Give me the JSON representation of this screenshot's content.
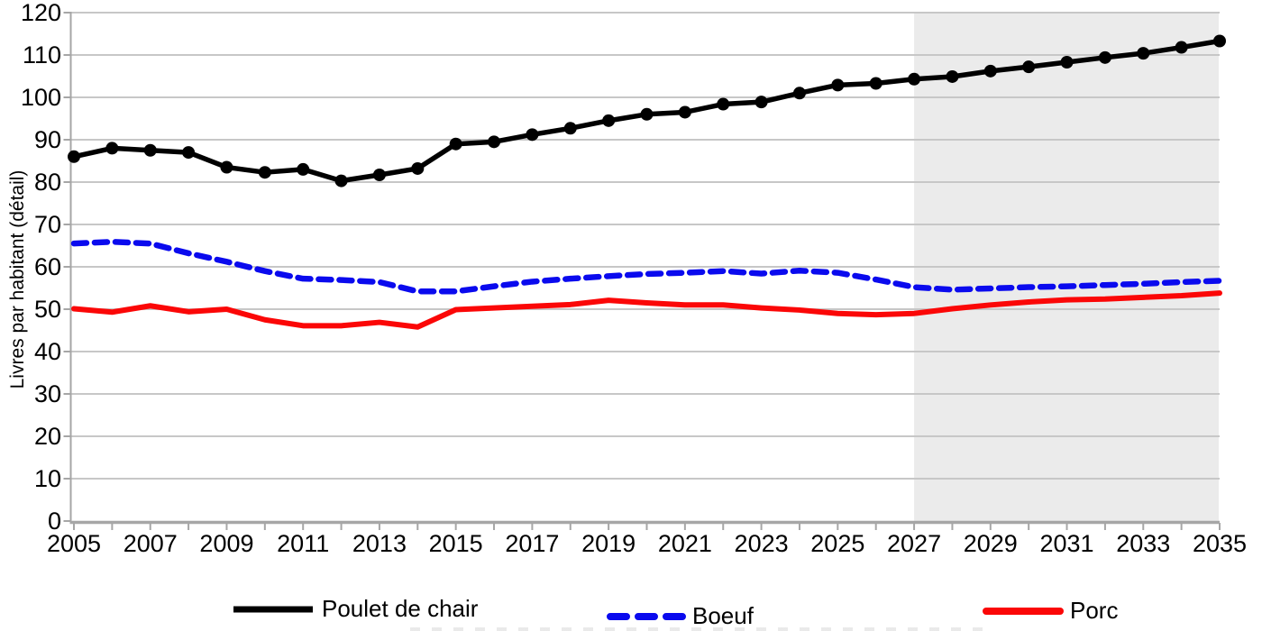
{
  "chart_data": {
    "type": "line",
    "title": "",
    "xlabel": "",
    "ylabel": "Livres par habitant (détail)",
    "ylim": [
      0,
      120
    ],
    "ytick_step": 10,
    "ytick_labels": [
      "0",
      "10",
      "20",
      "30",
      "40",
      "50",
      "60",
      "70",
      "80",
      "90",
      "100",
      "110",
      "120"
    ],
    "xtick_labels": [
      "2005",
      "2007",
      "2009",
      "2011",
      "2013",
      "2015",
      "2017",
      "2019",
      "2021",
      "2023",
      "2025",
      "2027",
      "2029",
      "2031",
      "2033",
      "2035"
    ],
    "x": [
      2005,
      2006,
      2007,
      2008,
      2009,
      2010,
      2011,
      2012,
      2013,
      2014,
      2015,
      2016,
      2017,
      2018,
      2019,
      2020,
      2021,
      2022,
      2023,
      2024,
      2025,
      2026,
      2027,
      2028,
      2029,
      2030,
      2031,
      2032,
      2033,
      2034,
      2035
    ],
    "series": [
      {
        "name": "Poulet de chair",
        "color": "#000000",
        "line_style": "solid",
        "markers": true,
        "values": [
          86,
          88,
          87.5,
          87,
          83.5,
          82.3,
          83,
          80.3,
          81.7,
          83.2,
          89,
          89.5,
          91.2,
          92.7,
          94.5,
          96,
          96.5,
          98.4,
          98.9,
          101,
          102.9,
          103.3,
          104.3,
          104.9,
          106.2,
          107.2,
          108.3,
          109.4,
          110.4,
          111.8,
          113.3
        ]
      },
      {
        "name": "Boeuf",
        "color": "#0A0AEE",
        "line_style": "dashed",
        "markers": false,
        "values": [
          65.5,
          65.9,
          65.5,
          63.2,
          61.2,
          59,
          57.2,
          56.9,
          56.4,
          54.2,
          54.2,
          55.4,
          56.5,
          57.2,
          57.8,
          58.3,
          58.6,
          59,
          58.4,
          59.1,
          58.6,
          57,
          55.2,
          54.6,
          54.9,
          55.2,
          55.4,
          55.7,
          56,
          56.4,
          56.7
        ]
      },
      {
        "name": "Porc",
        "color": "#FB0707",
        "line_style": "solid",
        "markers": false,
        "values": [
          50.1,
          49.3,
          50.8,
          49.4,
          50,
          47.5,
          46.1,
          46.1,
          46.9,
          45.8,
          49.9,
          50.3,
          50.7,
          51.1,
          52.1,
          51.5,
          51,
          51,
          50.3,
          49.8,
          49,
          48.7,
          49,
          50.1,
          51,
          51.7,
          52.2,
          52.4,
          52.8,
          53.2,
          53.8
        ]
      }
    ],
    "forecast_region": {
      "start_year": 2027,
      "end_year": 2035,
      "color": "#EBEBEB"
    },
    "grid": true,
    "legend_position": "bottom",
    "colors": {
      "grid": "#C7C7C7",
      "axis": "#A6A6A6",
      "text": "#000000",
      "background": "#FFFFFF"
    }
  }
}
